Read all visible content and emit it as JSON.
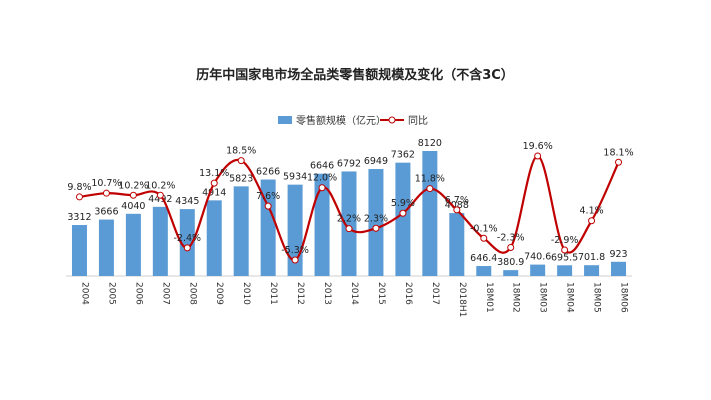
{
  "chart_data": {
    "type": "bar",
    "title": "历年中国家电市场全品类零售额规模及变化（不含3C）",
    "categories": [
      "2004",
      "2005",
      "2006",
      "2007",
      "2008",
      "2009",
      "2010",
      "2011",
      "2012",
      "2013",
      "2014",
      "2015",
      "2016",
      "2017",
      "2018H1",
      "18M01",
      "18M02",
      "18M03",
      "18M04",
      "18M05",
      "18M06"
    ],
    "series": [
      {
        "name": "零售额规模（亿元）",
        "type": "bar",
        "color": "#5b9bd5",
        "values": [
          3312,
          3666,
          4040,
          4492,
          4345,
          4914,
          5823,
          6266,
          5934,
          6646,
          6792,
          6949,
          7362,
          8120,
          4088,
          646.4,
          380.9,
          740.6,
          695.5,
          701.8,
          923
        ],
        "labels": [
          "3312",
          "3666",
          "4040",
          "4492",
          "4345",
          "4914",
          "5823",
          "6266",
          "5934",
          "6646",
          "6792",
          "6949",
          "7362",
          "8120",
          "4088",
          "646.4",
          "380.9",
          "740.6",
          "695.5",
          "701.8",
          "923"
        ]
      },
      {
        "name": "同比",
        "type": "line",
        "color": "#c00000",
        "values": [
          9.8,
          10.7,
          10.2,
          10.2,
          -2.4,
          13.1,
          18.5,
          7.6,
          -5.3,
          12.0,
          2.2,
          2.3,
          5.9,
          11.8,
          6.7,
          -0.1,
          -2.3,
          19.6,
          -2.9,
          4.1,
          18.1
        ],
        "labels": [
          "9.8%",
          "10.7%",
          "10.2%",
          "10.2%",
          "-2.4%",
          "13.1%",
          "18.5%",
          "7.6%",
          "-5.3%",
          "12.0%",
          "2.2%",
          "2.3%",
          "5.9%",
          "11.8%",
          "6.7%",
          "-0.1%",
          "-2.3%",
          "19.6%",
          "-2.9%",
          "4.1%",
          "18.1%"
        ]
      }
    ],
    "ylim": [
      0,
      9000
    ],
    "y2lim": [
      -10,
      25
    ],
    "grid": false,
    "legend_position": "top-center"
  }
}
